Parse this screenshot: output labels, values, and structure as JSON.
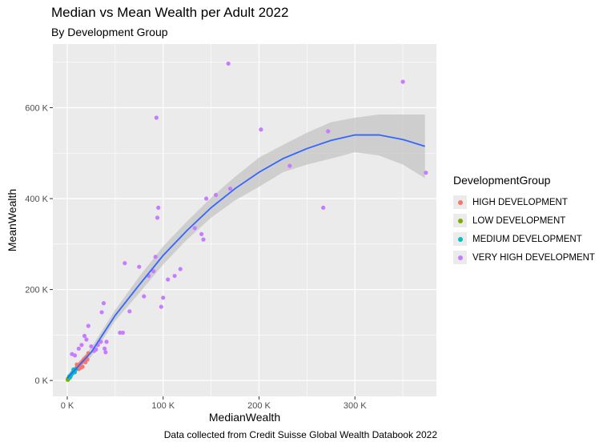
{
  "colors": {
    "HIGH DEVELOPMENT": "#F8766D",
    "LOW DEVELOPMENT": "#7CAE00",
    "MEDIUM DEVELOPMENT": "#00BFC4",
    "VERY HIGH DEVELOPMENT": "#C77CFF",
    "smooth_line": "#3366FF",
    "ribbon": "#BEBEBE",
    "panel": "#EBEBEB",
    "grid": "#FFFFFF"
  },
  "chart_data": {
    "type": "scatter",
    "title": "Median vs Mean Wealth per Adult 2022",
    "subtitle": "By Development Group",
    "caption": "Data collected from Credit Suisse Global Wealth Databook 2022",
    "xlabel": "MedianWealth",
    "ylabel": "MeanWealth",
    "xlim": [
      -15000,
      385000
    ],
    "ylim": [
      -35000,
      740000
    ],
    "x_ticks": [
      0,
      100000,
      200000,
      300000
    ],
    "x_tick_labels": [
      "0 K",
      "100 K",
      "200 K",
      "300 K"
    ],
    "y_ticks": [
      0,
      200000,
      400000,
      600000
    ],
    "y_tick_labels": [
      "0 K",
      "200 K",
      "400 K",
      "600 K"
    ],
    "grid": true,
    "legend": {
      "title": "DevelopmentGroup",
      "position": "right",
      "entries": [
        "HIGH DEVELOPMENT",
        "LOW DEVELOPMENT",
        "MEDIUM DEVELOPMENT",
        "VERY HIGH DEVELOPMENT"
      ]
    },
    "series": [
      {
        "name": "HIGH DEVELOPMENT",
        "points": [
          [
            5000,
            15000
          ],
          [
            7000,
            20000
          ],
          [
            8000,
            22000
          ],
          [
            9000,
            25000
          ],
          [
            10000,
            28000
          ],
          [
            11000,
            30000
          ],
          [
            12000,
            33000
          ],
          [
            13000,
            35000
          ],
          [
            14000,
            38000
          ],
          [
            15000,
            40000
          ],
          [
            16000,
            42000
          ],
          [
            17000,
            45000
          ],
          [
            18000,
            48000
          ],
          [
            20000,
            52000
          ],
          [
            22000,
            60000
          ],
          [
            12000,
            25000
          ],
          [
            14000,
            28000
          ],
          [
            10000,
            35000
          ],
          [
            16000,
            30000
          ],
          [
            8000,
            18000
          ],
          [
            19000,
            40000
          ],
          [
            21000,
            46000
          ]
        ]
      },
      {
        "name": "LOW DEVELOPMENT",
        "points": [
          [
            500,
            2000
          ],
          [
            800,
            3000
          ],
          [
            1000,
            4000
          ],
          [
            1200,
            3500
          ],
          [
            1500,
            5000
          ],
          [
            2000,
            6000
          ],
          [
            2500,
            8000
          ],
          [
            3000,
            7000
          ],
          [
            1800,
            4500
          ],
          [
            600,
            1500
          ],
          [
            900,
            2500
          ],
          [
            2200,
            5500
          ]
        ]
      },
      {
        "name": "MEDIUM DEVELOPMENT",
        "points": [
          [
            2000,
            8000
          ],
          [
            3000,
            10000
          ],
          [
            4000,
            12000
          ],
          [
            5000,
            15000
          ],
          [
            6000,
            18000
          ],
          [
            7000,
            20000
          ],
          [
            8000,
            22000
          ],
          [
            9000,
            25000
          ],
          [
            3500,
            9000
          ],
          [
            4500,
            14000
          ],
          [
            5500,
            16000
          ],
          [
            6500,
            24000
          ],
          [
            2500,
            6000
          ],
          [
            7500,
            18000
          ]
        ]
      },
      {
        "name": "VERY HIGH DEVELOPMENT",
        "points": [
          [
            5000,
            58000
          ],
          [
            8000,
            55000
          ],
          [
            12000,
            70000
          ],
          [
            15000,
            78000
          ],
          [
            18000,
            98000
          ],
          [
            20000,
            90000
          ],
          [
            22000,
            120000
          ],
          [
            25000,
            75000
          ],
          [
            28000,
            65000
          ],
          [
            30000,
            68000
          ],
          [
            32000,
            78000
          ],
          [
            35000,
            85000
          ],
          [
            36000,
            150000
          ],
          [
            38000,
            170000
          ],
          [
            39000,
            70000
          ],
          [
            40000,
            62000
          ],
          [
            41000,
            85000
          ],
          [
            55000,
            105000
          ],
          [
            58000,
            105000
          ],
          [
            60000,
            258000
          ],
          [
            65000,
            152000
          ],
          [
            75000,
            250000
          ],
          [
            80000,
            185000
          ],
          [
            85000,
            230000
          ],
          [
            90000,
            240000
          ],
          [
            92000,
            272000
          ],
          [
            93000,
            578000
          ],
          [
            94000,
            358000
          ],
          [
            95000,
            380000
          ],
          [
            98000,
            162000
          ],
          [
            100000,
            182000
          ],
          [
            105000,
            222000
          ],
          [
            112000,
            230000
          ],
          [
            118000,
            245000
          ],
          [
            133000,
            335000
          ],
          [
            140000,
            322000
          ],
          [
            142000,
            310000
          ],
          [
            145000,
            400000
          ],
          [
            155000,
            408000
          ],
          [
            168000,
            697000
          ],
          [
            170000,
            422000
          ],
          [
            202000,
            552000
          ],
          [
            232000,
            472000
          ],
          [
            267000,
            380000
          ],
          [
            272000,
            548000
          ],
          [
            350000,
            657000
          ],
          [
            374000,
            457000
          ]
        ]
      }
    ],
    "smooth": {
      "x": [
        0,
        25000,
        50000,
        75000,
        100000,
        125000,
        150000,
        175000,
        200000,
        225000,
        250000,
        275000,
        300000,
        325000,
        350000,
        373000
      ],
      "y": [
        5000,
        62000,
        143000,
        210000,
        275000,
        330000,
        380000,
        422000,
        458000,
        488000,
        510000,
        528000,
        540000,
        540000,
        530000,
        515000
      ],
      "upper": [
        12000,
        72000,
        155000,
        228000,
        295000,
        350000,
        402000,
        448000,
        490000,
        518000,
        545000,
        568000,
        578000,
        585000,
        585000,
        585000
      ],
      "lower": [
        -2000,
        52000,
        131000,
        192000,
        255000,
        310000,
        358000,
        396000,
        426000,
        458000,
        475000,
        488000,
        502000,
        495000,
        475000,
        445000
      ]
    }
  }
}
